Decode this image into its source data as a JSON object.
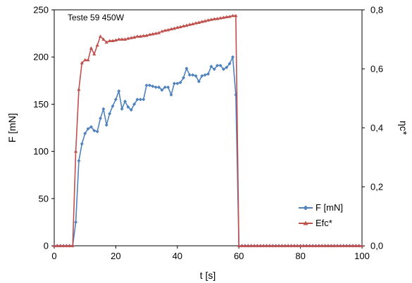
{
  "chart_data": {
    "type": "line",
    "annotation": "Teste 59 450W",
    "xlabel": "t [s]",
    "ylabel": "F [mN]",
    "y2label": "ηc*",
    "xlim": [
      0,
      100
    ],
    "ylim": [
      0,
      250
    ],
    "y2lim": [
      0,
      0.8
    ],
    "x_ticks": [
      "0",
      "20",
      "40",
      "60",
      "80",
      "100"
    ],
    "y_ticks": [
      "0",
      "50",
      "100",
      "150",
      "200",
      "250"
    ],
    "y2_ticks": [
      "0,0",
      "0,2",
      "0,4",
      "0,6",
      "0,8"
    ],
    "legend_position": "bottom-right",
    "series": [
      {
        "name": "F [mN]",
        "axis": "left",
        "color": "#4f81bd",
        "marker": "diamond",
        "points": [
          [
            0,
            0
          ],
          [
            1,
            0
          ],
          [
            2,
            0
          ],
          [
            3,
            0
          ],
          [
            4,
            0
          ],
          [
            5,
            0
          ],
          [
            6,
            0
          ],
          [
            7,
            25
          ],
          [
            8,
            90
          ],
          [
            9,
            108
          ],
          [
            10,
            119
          ],
          [
            11,
            124
          ],
          [
            12,
            126
          ],
          [
            13,
            122
          ],
          [
            14,
            121
          ],
          [
            15,
            135
          ],
          [
            16,
            145
          ],
          [
            17,
            128
          ],
          [
            18,
            140
          ],
          [
            19,
            148
          ],
          [
            20,
            155
          ],
          [
            21,
            164
          ],
          [
            22,
            145
          ],
          [
            23,
            153
          ],
          [
            24,
            147
          ],
          [
            25,
            144
          ],
          [
            26,
            150
          ],
          [
            27,
            155
          ],
          [
            28,
            155
          ],
          [
            29,
            155
          ],
          [
            30,
            170
          ],
          [
            31,
            170
          ],
          [
            32,
            169
          ],
          [
            33,
            168
          ],
          [
            34,
            168
          ],
          [
            35,
            165
          ],
          [
            36,
            168
          ],
          [
            37,
            168
          ],
          [
            38,
            160
          ],
          [
            39,
            172
          ],
          [
            40,
            172
          ],
          [
            41,
            173
          ],
          [
            42,
            178
          ],
          [
            43,
            188
          ],
          [
            44,
            181
          ],
          [
            45,
            181
          ],
          [
            46,
            180
          ],
          [
            47,
            174
          ],
          [
            48,
            180
          ],
          [
            49,
            181
          ],
          [
            50,
            182
          ],
          [
            51,
            190
          ],
          [
            52,
            187
          ],
          [
            53,
            191
          ],
          [
            54,
            191
          ],
          [
            55,
            187
          ],
          [
            56,
            189
          ],
          [
            57,
            193
          ],
          [
            58,
            200
          ],
          [
            59,
            160
          ],
          [
            60,
            0
          ],
          [
            61,
            0
          ],
          [
            62,
            0
          ],
          [
            63,
            0
          ],
          [
            64,
            0
          ],
          [
            65,
            0
          ],
          [
            66,
            0
          ],
          [
            67,
            0
          ],
          [
            68,
            0
          ],
          [
            69,
            0
          ],
          [
            70,
            0
          ],
          [
            71,
            0
          ],
          [
            72,
            0
          ],
          [
            73,
            0
          ],
          [
            74,
            0
          ],
          [
            75,
            0
          ],
          [
            76,
            0
          ],
          [
            77,
            0
          ],
          [
            78,
            0
          ],
          [
            79,
            0
          ],
          [
            80,
            0
          ],
          [
            81,
            0
          ],
          [
            82,
            0
          ],
          [
            83,
            0
          ],
          [
            84,
            0
          ],
          [
            85,
            0
          ],
          [
            86,
            0
          ],
          [
            87,
            0
          ],
          [
            88,
            0
          ],
          [
            89,
            0
          ],
          [
            90,
            0
          ],
          [
            91,
            0
          ],
          [
            92,
            0
          ],
          [
            93,
            0
          ],
          [
            94,
            0
          ],
          [
            95,
            0
          ],
          [
            96,
            0
          ],
          [
            97,
            0
          ],
          [
            98,
            0
          ],
          [
            99,
            0
          ],
          [
            100,
            0
          ]
        ]
      },
      {
        "name": "Efc*",
        "axis": "right",
        "color": "#c0504d",
        "marker": "triangle",
        "points": [
          [
            0,
            0
          ],
          [
            1,
            0
          ],
          [
            2,
            0
          ],
          [
            3,
            0
          ],
          [
            4,
            0
          ],
          [
            5,
            0
          ],
          [
            6,
            0
          ],
          [
            7,
            0.32
          ],
          [
            8,
            0.53
          ],
          [
            9,
            0.62
          ],
          [
            10,
            0.63
          ],
          [
            11,
            0.63
          ],
          [
            12,
            0.67
          ],
          [
            13,
            0.65
          ],
          [
            14,
            0.68
          ],
          [
            15,
            0.71
          ],
          [
            16,
            0.7
          ],
          [
            17,
            0.69
          ],
          [
            18,
            0.695
          ],
          [
            19,
            0.695
          ],
          [
            20,
            0.697
          ],
          [
            21,
            0.7
          ],
          [
            22,
            0.7
          ],
          [
            23,
            0.7
          ],
          [
            24,
            0.703
          ],
          [
            25,
            0.705
          ],
          [
            26,
            0.707
          ],
          [
            27,
            0.71
          ],
          [
            28,
            0.71
          ],
          [
            29,
            0.712
          ],
          [
            30,
            0.713
          ],
          [
            31,
            0.716
          ],
          [
            32,
            0.718
          ],
          [
            33,
            0.72
          ],
          [
            34,
            0.722
          ],
          [
            35,
            0.727
          ],
          [
            36,
            0.73
          ],
          [
            37,
            0.732
          ],
          [
            38,
            0.735
          ],
          [
            39,
            0.737
          ],
          [
            40,
            0.74
          ],
          [
            41,
            0.742
          ],
          [
            42,
            0.745
          ],
          [
            43,
            0.747
          ],
          [
            44,
            0.75
          ],
          [
            45,
            0.752
          ],
          [
            46,
            0.755
          ],
          [
            47,
            0.757
          ],
          [
            48,
            0.76
          ],
          [
            49,
            0.762
          ],
          [
            50,
            0.765
          ],
          [
            51,
            0.767
          ],
          [
            52,
            0.769
          ],
          [
            53,
            0.77
          ],
          [
            54,
            0.772
          ],
          [
            55,
            0.774
          ],
          [
            56,
            0.776
          ],
          [
            57,
            0.777
          ],
          [
            58,
            0.78
          ],
          [
            59,
            0.78
          ],
          [
            60,
            0
          ],
          [
            61,
            0
          ],
          [
            62,
            0
          ],
          [
            63,
            0
          ],
          [
            64,
            0
          ],
          [
            65,
            0
          ],
          [
            66,
            0
          ],
          [
            67,
            0
          ],
          [
            68,
            0
          ],
          [
            69,
            0
          ],
          [
            70,
            0
          ],
          [
            71,
            0
          ],
          [
            72,
            0
          ],
          [
            73,
            0
          ],
          [
            74,
            0
          ],
          [
            75,
            0
          ],
          [
            76,
            0
          ],
          [
            77,
            0
          ],
          [
            78,
            0
          ],
          [
            79,
            0
          ],
          [
            80,
            0
          ],
          [
            81,
            0
          ],
          [
            82,
            0
          ],
          [
            83,
            0
          ],
          [
            84,
            0
          ],
          [
            85,
            0
          ],
          [
            86,
            0
          ],
          [
            87,
            0
          ],
          [
            88,
            0
          ],
          [
            89,
            0
          ],
          [
            90,
            0
          ],
          [
            91,
            0
          ],
          [
            92,
            0
          ],
          [
            93,
            0
          ],
          [
            94,
            0
          ],
          [
            95,
            0
          ],
          [
            96,
            0
          ],
          [
            97,
            0
          ],
          [
            98,
            0
          ],
          [
            99,
            0
          ],
          [
            100,
            0
          ]
        ]
      }
    ]
  }
}
